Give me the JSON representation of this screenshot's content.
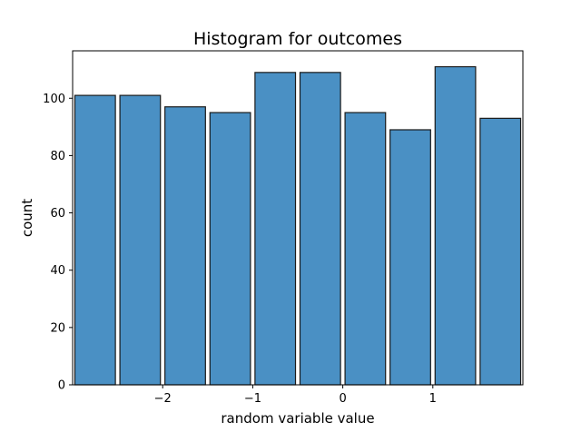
{
  "chart_data": {
    "type": "bar",
    "title": "Histogram for outcomes",
    "xlabel": "random variable value",
    "ylabel": "count",
    "bins": [
      {
        "start": -3.0,
        "end": -2.5,
        "value": 101
      },
      {
        "start": -2.5,
        "end": -2.0,
        "value": 101
      },
      {
        "start": -2.0,
        "end": -1.5,
        "value": 97
      },
      {
        "start": -1.5,
        "end": -1.0,
        "value": 95
      },
      {
        "start": -1.0,
        "end": -0.5,
        "value": 109
      },
      {
        "start": -0.5,
        "end": 0.0,
        "value": 109
      },
      {
        "start": 0.0,
        "end": 0.5,
        "value": 95
      },
      {
        "start": 0.5,
        "end": 1.0,
        "value": 89
      },
      {
        "start": 1.0,
        "end": 1.5,
        "value": 111
      },
      {
        "start": 1.5,
        "end": 2.0,
        "value": 93
      }
    ],
    "xlim": [
      -3.0,
      2.0
    ],
    "ylim": [
      0,
      116.55
    ],
    "xticks": [
      {
        "value": -2,
        "label": "−2"
      },
      {
        "value": -1,
        "label": "−1"
      },
      {
        "value": 0,
        "label": "0"
      },
      {
        "value": 1,
        "label": "1"
      }
    ],
    "yticks": [
      {
        "value": 0,
        "label": "0"
      },
      {
        "value": 20,
        "label": "20"
      },
      {
        "value": 40,
        "label": "40"
      },
      {
        "value": 60,
        "label": "60"
      },
      {
        "value": 80,
        "label": "80"
      },
      {
        "value": 100,
        "label": "100"
      }
    ],
    "bar_width_fraction": 0.9,
    "bar_color": "#4a90c4",
    "bar_edge_color": "#1a1a1a",
    "grid": false,
    "legend": "none"
  }
}
